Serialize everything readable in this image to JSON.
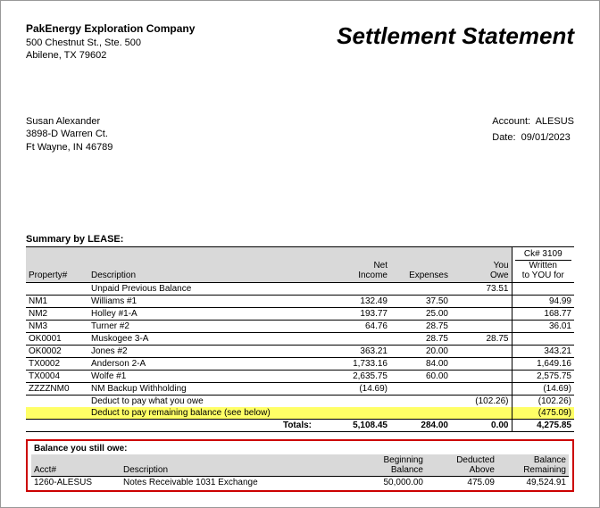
{
  "header": {
    "company_name": "PakEnergy Exploration Company",
    "addr1": "500 Chestnut St., Ste. 500",
    "addr2": "Abilene, TX  79602",
    "title": "Settlement Statement"
  },
  "recipient": {
    "name": "Susan Alexander",
    "addr1": "3898-D Warren Ct.",
    "addr2": "Ft Wayne, IN  46789"
  },
  "account": {
    "label": "Account:",
    "value": "ALESUS",
    "date_label": "Date:",
    "date_value": "09/01/2023"
  },
  "summary": {
    "title": "Summary by LEASE:",
    "cols": {
      "property": "Property#",
      "description": "Description",
      "net_income": "Net\nIncome",
      "expenses": "Expenses",
      "you_owe": "You\nOwe",
      "ck_line1": "Ck# 3109",
      "ck_line2": "Written",
      "ck_line3": "to YOU for"
    },
    "rows": [
      {
        "prop": "",
        "desc": "Unpaid Previous Balance",
        "inc": "",
        "exp": "",
        "owe": "73.51",
        "ck": ""
      },
      {
        "prop": "NM1",
        "desc": "Williams #1",
        "inc": "132.49",
        "exp": "37.50",
        "owe": "",
        "ck": "94.99"
      },
      {
        "prop": "NM2",
        "desc": "Holley #1-A",
        "inc": "193.77",
        "exp": "25.00",
        "owe": "",
        "ck": "168.77"
      },
      {
        "prop": "NM3",
        "desc": "Turner #2",
        "inc": "64.76",
        "exp": "28.75",
        "owe": "",
        "ck": "36.01"
      },
      {
        "prop": "OK0001",
        "desc": "Muskogee 3-A",
        "inc": "",
        "exp": "28.75",
        "owe": "28.75",
        "ck": ""
      },
      {
        "prop": "OK0002",
        "desc": "Jones #2",
        "inc": "363.21",
        "exp": "20.00",
        "owe": "",
        "ck": "343.21"
      },
      {
        "prop": "TX0002",
        "desc": "Anderson 2-A",
        "inc": "1,733.16",
        "exp": "84.00",
        "owe": "",
        "ck": "1,649.16"
      },
      {
        "prop": "TX0004",
        "desc": "Wolfe #1",
        "inc": "2,635.75",
        "exp": "60.00",
        "owe": "",
        "ck": "2,575.75"
      },
      {
        "prop": "ZZZZNM0",
        "desc": "NM Backup Withholding",
        "inc": "(14.69)",
        "exp": "",
        "owe": "",
        "ck": "(14.69)"
      }
    ],
    "deduct1": {
      "desc": "Deduct to pay what you owe",
      "owe": "(102.26)",
      "ck": "(102.26)"
    },
    "deduct2": {
      "desc": "Deduct to pay remaining balance (see below)",
      "ck": "(475.09)"
    },
    "totals": {
      "label": "Totals:",
      "inc": "5,108.45",
      "exp": "284.00",
      "owe": "0.00",
      "ck": "4,275.85"
    }
  },
  "balance": {
    "title": "Balance you still owe:",
    "cols": {
      "acct": "Acct#",
      "desc": "Description",
      "beg": "Beginning\nBalance",
      "ded": "Deducted\nAbove",
      "rem": "Balance\nRemaining"
    },
    "rows": [
      {
        "acct": "1260-ALESUS",
        "desc": "Notes Receivable 1031 Exchange",
        "beg": "50,000.00",
        "ded": "475.09",
        "rem": "49,524.91"
      }
    ]
  }
}
